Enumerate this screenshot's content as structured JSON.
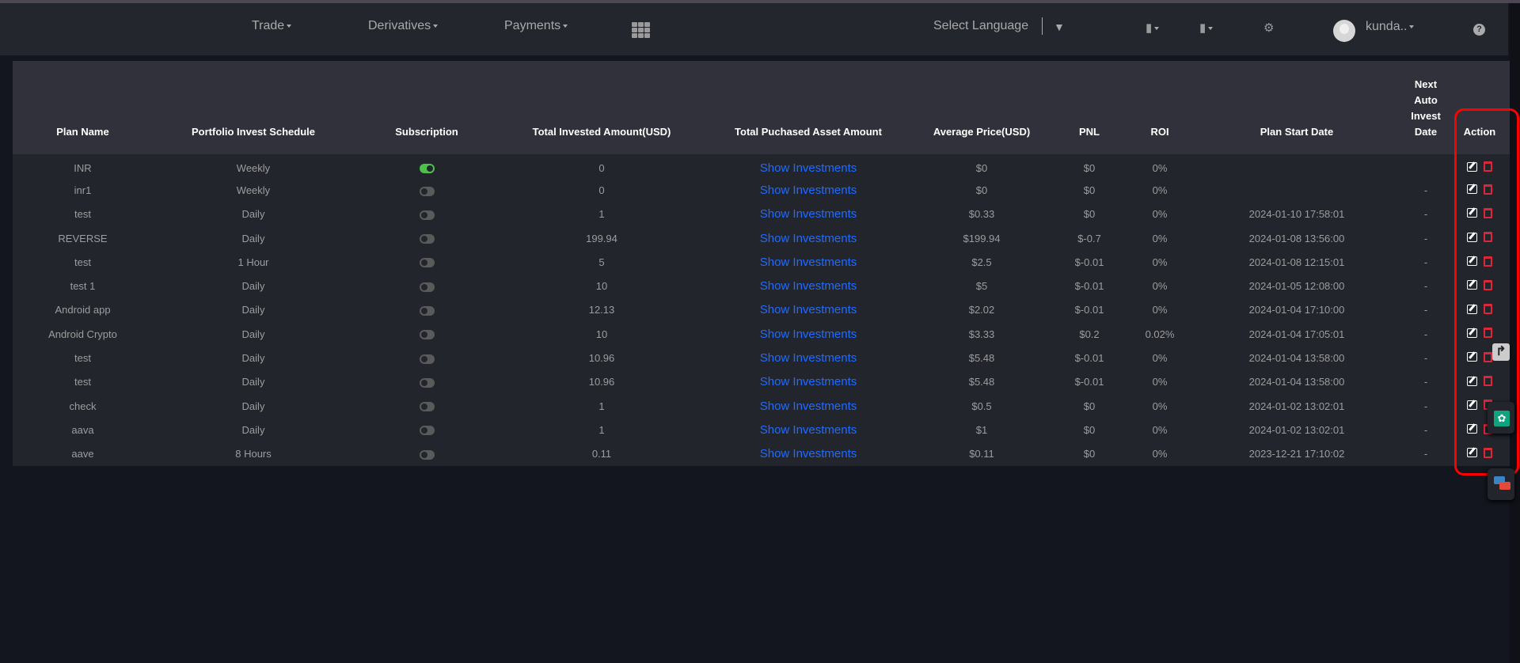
{
  "nav": {
    "items": [
      {
        "label": "Trade"
      },
      {
        "label": "Derivatives"
      },
      {
        "label": "Payments"
      }
    ],
    "apps_icon": "grid-icon",
    "language_label": "Select Language",
    "username": "kunda..",
    "icons": [
      "book-icon",
      "wallet-icon",
      "gear-icon",
      "help-icon"
    ]
  },
  "table": {
    "headers": [
      "Plan Name",
      "Portfolio Invest Schedule",
      "Subscription",
      "Total Invested Amount(USD)",
      "Total Puchased Asset Amount",
      "Average Price(USD)",
      "PNL",
      "ROI",
      "Plan Start Date",
      "Next Auto Invest Date",
      "Action"
    ],
    "link_label": "Show Investments",
    "rows": [
      {
        "name": "INR",
        "schedule": "Weekly",
        "subscribed": true,
        "invested": "0",
        "avg": "$0",
        "pnl": "$0",
        "roi": "0%",
        "start": "",
        "next": ""
      },
      {
        "name": "inr1",
        "schedule": "Weekly",
        "subscribed": false,
        "invested": "0",
        "avg": "$0",
        "pnl": "$0",
        "roi": "0%",
        "start": "",
        "next": "-"
      },
      {
        "name": "test",
        "schedule": "Daily",
        "subscribed": false,
        "invested": "1",
        "avg": "$0.33",
        "pnl": "$0",
        "roi": "0%",
        "start": "2024-01-10 17:58:01",
        "next": "-"
      },
      {
        "name": "REVERSE",
        "schedule": "Daily",
        "subscribed": false,
        "invested": "199.94",
        "avg": "$199.94",
        "pnl": "$-0.7",
        "roi": "0%",
        "start": "2024-01-08 13:56:00",
        "next": "-"
      },
      {
        "name": "test",
        "schedule": "1 Hour",
        "subscribed": false,
        "invested": "5",
        "avg": "$2.5",
        "pnl": "$-0.01",
        "roi": "0%",
        "start": "2024-01-08 12:15:01",
        "next": "-"
      },
      {
        "name": "test 1",
        "schedule": "Daily",
        "subscribed": false,
        "invested": "10",
        "avg": "$5",
        "pnl": "$-0.01",
        "roi": "0%",
        "start": "2024-01-05 12:08:00",
        "next": "-"
      },
      {
        "name": "Android app",
        "schedule": "Daily",
        "subscribed": false,
        "invested": "12.13",
        "avg": "$2.02",
        "pnl": "$-0.01",
        "roi": "0%",
        "start": "2024-01-04 17:10:00",
        "next": "-"
      },
      {
        "name": "Android Crypto",
        "schedule": "Daily",
        "subscribed": false,
        "invested": "10",
        "avg": "$3.33",
        "pnl": "$0.2",
        "roi": "0.02%",
        "start": "2024-01-04 17:05:01",
        "next": "-"
      },
      {
        "name": "test",
        "schedule": "Daily",
        "subscribed": false,
        "invested": "10.96",
        "avg": "$5.48",
        "pnl": "$-0.01",
        "roi": "0%",
        "start": "2024-01-04 13:58:00",
        "next": "-"
      },
      {
        "name": "test",
        "schedule": "Daily",
        "subscribed": false,
        "invested": "10.96",
        "avg": "$5.48",
        "pnl": "$-0.01",
        "roi": "0%",
        "start": "2024-01-04 13:58:00",
        "next": "-"
      },
      {
        "name": "check",
        "schedule": "Daily",
        "subscribed": false,
        "invested": "1",
        "avg": "$0.5",
        "pnl": "$0",
        "roi": "0%",
        "start": "2024-01-02 13:02:01",
        "next": "-"
      },
      {
        "name": "aava",
        "schedule": "Daily",
        "subscribed": false,
        "invested": "1",
        "avg": "$1",
        "pnl": "$0",
        "roi": "0%",
        "start": "2024-01-02 13:02:01",
        "next": "-"
      },
      {
        "name": "aave",
        "schedule": "8 Hours",
        "subscribed": false,
        "invested": "0.11",
        "avg": "$0.11",
        "pnl": "$0",
        "roi": "0%",
        "start": "2023-12-21 17:10:02",
        "next": "-"
      }
    ]
  },
  "colors": {
    "link": "#1f6bff",
    "toggle_on": "#4cbf4c",
    "delete": "#d9283a",
    "highlight": "#ff0000"
  }
}
